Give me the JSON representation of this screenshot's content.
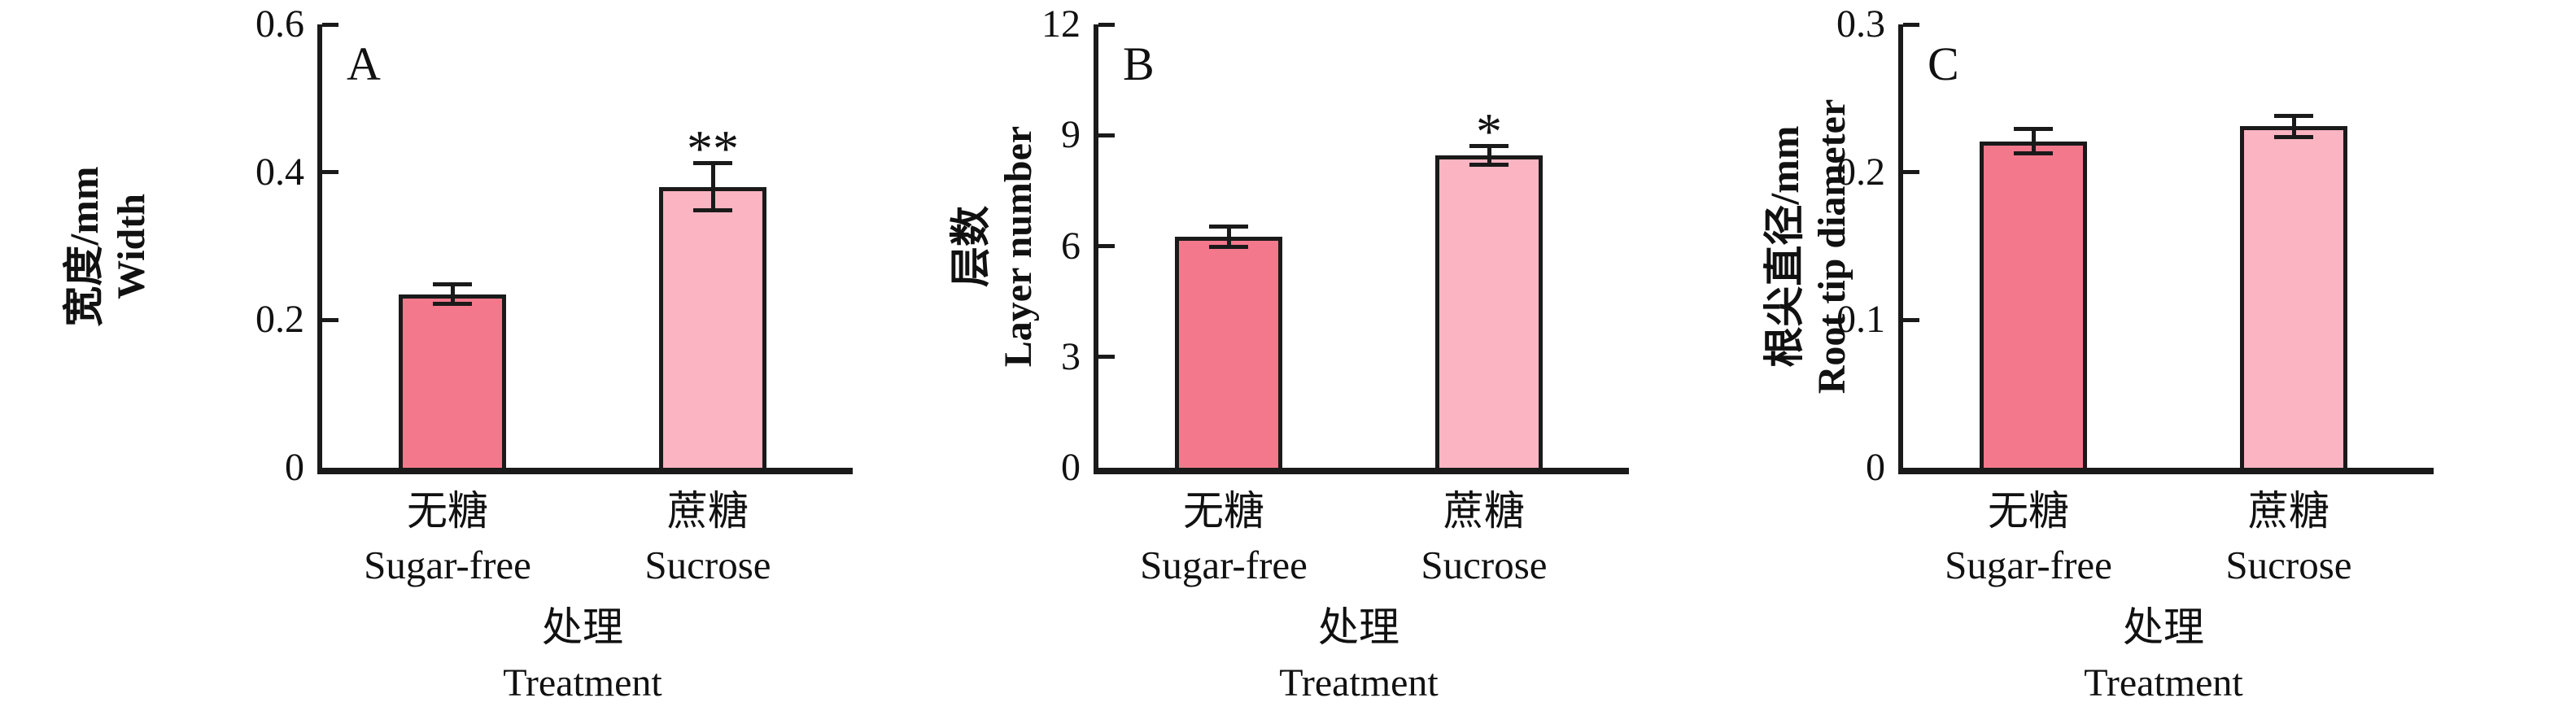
{
  "styles": {
    "background": "#ffffff",
    "axis_color": "#1a1a1a",
    "text_color": "#111111",
    "bar_colors": [
      "#F4788C",
      "#FAB4C2"
    ]
  },
  "chart_data": [
    {
      "type": "bar",
      "panel_label": "A",
      "ylabel_zh": "宽度/mm",
      "ylabel_en": "Width",
      "xlabel_zh": "处理",
      "xlabel_en": "Treatment",
      "categories_zh": [
        "无糖",
        "蔗糖"
      ],
      "categories_en": [
        "Sugar-free",
        "Sucrose"
      ],
      "values": [
        0.235,
        0.38
      ],
      "errors": [
        0.013,
        0.032
      ],
      "significance": [
        "",
        "**"
      ],
      "ylim": [
        0,
        0.6
      ],
      "yticks": [
        0.6,
        0.4,
        0.2,
        0
      ],
      "ytick_labels": [
        "0.6",
        "0.4",
        "0.2",
        "0"
      ],
      "grid": "off",
      "legend": "none"
    },
    {
      "type": "bar",
      "panel_label": "B",
      "ylabel_zh": "层数",
      "ylabel_en": "Layer number",
      "xlabel_zh": "处理",
      "xlabel_en": "Treatment",
      "categories_zh": [
        "无糖",
        "蔗糖"
      ],
      "categories_en": [
        "Sugar-free",
        "Sucrose"
      ],
      "values": [
        6.25,
        8.45
      ],
      "errors": [
        0.27,
        0.25
      ],
      "significance": [
        "",
        "*"
      ],
      "ylim": [
        0,
        12
      ],
      "yticks": [
        12,
        9,
        6,
        3,
        0
      ],
      "ytick_labels": [
        "12",
        "9",
        "6",
        "3",
        "0"
      ],
      "grid": "off",
      "legend": "none"
    },
    {
      "type": "bar",
      "panel_label": "C",
      "ylabel_zh": "根尖直径/mm",
      "ylabel_en": "Root tip diameter",
      "xlabel_zh": "处理",
      "xlabel_en": "Treatment",
      "categories_zh": [
        "无糖",
        "蔗糖"
      ],
      "categories_en": [
        "Sugar-free",
        "Sucrose"
      ],
      "values": [
        0.221,
        0.231
      ],
      "errors": [
        0.008,
        0.007
      ],
      "significance": [
        "",
        ""
      ],
      "ylim": [
        0,
        0.3
      ],
      "yticks": [
        0.3,
        0.2,
        0.1,
        0
      ],
      "ytick_labels": [
        "0.3",
        "0.2",
        "0.1",
        "0"
      ],
      "grid": "off",
      "legend": "none"
    }
  ]
}
